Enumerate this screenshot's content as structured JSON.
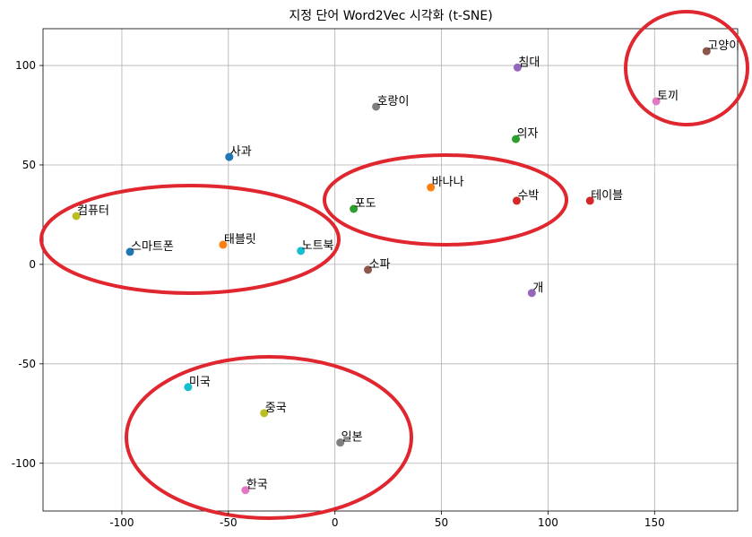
{
  "chart_data": {
    "type": "scatter",
    "title": "지정 단어 Word2Vec 시각화 (t-SNE)",
    "labels": [
      "사과",
      "바나나",
      "포도",
      "수박",
      "개",
      "소파",
      "토끼",
      "호랑이",
      "컴퓨터",
      "노트북",
      "스마트폰",
      "태블릿",
      "의자",
      "테이블",
      "침대",
      "고양이",
      "한국",
      "일본",
      "중국",
      "미국"
    ],
    "x": [
      -49.6,
      45,
      8.8,
      85.3,
      92.4,
      15.5,
      150.8,
      19.3,
      -121.4,
      -16,
      -96.2,
      -52.5,
      84.9,
      119.7,
      85.7,
      174.4,
      -42,
      2.5,
      -33.2,
      -68.9
    ],
    "y": [
      54,
      38.7,
      27.9,
      32,
      -14.4,
      -2.7,
      82,
      79.3,
      24.3,
      6.8,
      6.3,
      9.9,
      63,
      32,
      99,
      107.2,
      -113.5,
      -89.6,
      -74.8,
      -61.7
    ],
    "colors": [
      "#1f77b4",
      "#ff7f0e",
      "#2ca02c",
      "#d62728",
      "#9467bd",
      "#8c564b",
      "#e377c2",
      "#7f7f7f",
      "#bcbd22",
      "#17becf",
      "#1f77b4",
      "#ff7f0e",
      "#2ca02c",
      "#d62728",
      "#9467bd",
      "#8c564b",
      "#e377c2",
      "#7f7f7f",
      "#bcbd22",
      "#17becf"
    ],
    "xlim": [
      -137,
      189
    ],
    "ylim": [
      -124,
      118.5
    ],
    "xticks": [
      -100,
      -50,
      0,
      50,
      100,
      150
    ],
    "yticks": [
      -100,
      -50,
      0,
      50,
      100
    ],
    "grid": true
  }
}
